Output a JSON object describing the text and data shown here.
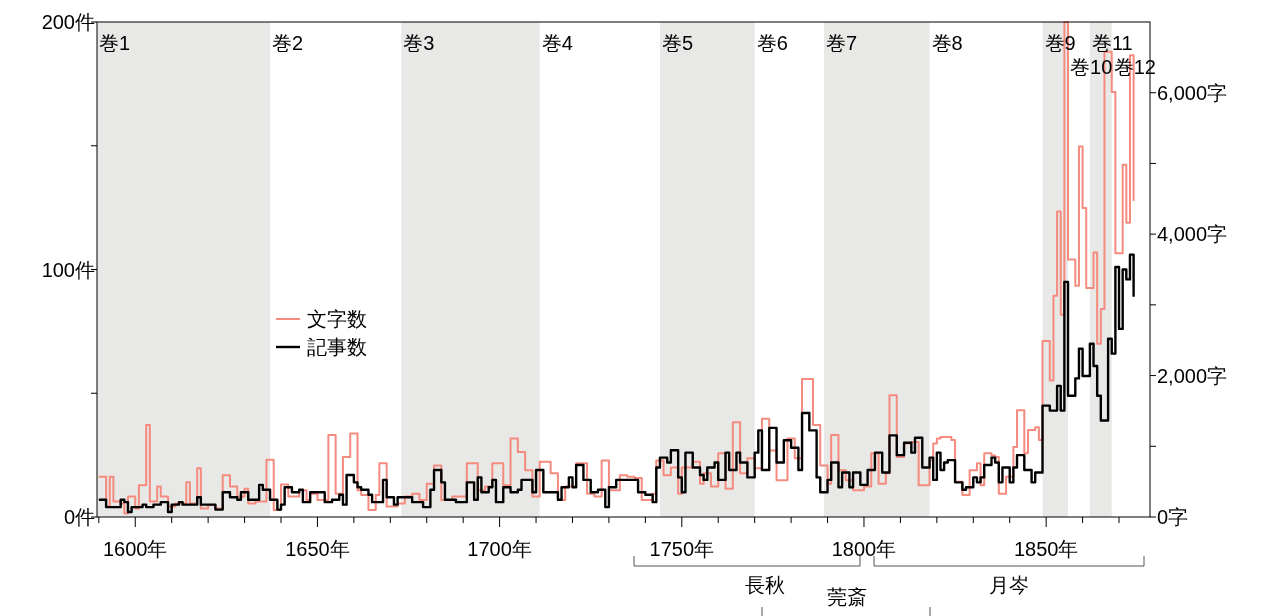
{
  "chart_data": {
    "type": "step",
    "xlim": [
      1589.5,
      1878.5
    ],
    "xticks": [
      {
        "value": 1590,
        "label": null
      },
      {
        "value": 1600,
        "label": "1600年"
      },
      {
        "value": 1610,
        "label": null
      },
      {
        "value": 1620,
        "label": null
      },
      {
        "value": 1630,
        "label": null
      },
      {
        "value": 1640,
        "label": null
      },
      {
        "value": 1650,
        "label": "1650年"
      },
      {
        "value": 1660,
        "label": null
      },
      {
        "value": 1670,
        "label": null
      },
      {
        "value": 1680,
        "label": null
      },
      {
        "value": 1690,
        "label": null
      },
      {
        "value": 1700,
        "label": "1700年"
      },
      {
        "value": 1710,
        "label": null
      },
      {
        "value": 1720,
        "label": null
      },
      {
        "value": 1730,
        "label": null
      },
      {
        "value": 1740,
        "label": null
      },
      {
        "value": 1750,
        "label": "1750年"
      },
      {
        "value": 1760,
        "label": null
      },
      {
        "value": 1770,
        "label": null
      },
      {
        "value": 1780,
        "label": null
      },
      {
        "value": 1790,
        "label": null
      },
      {
        "value": 1800,
        "label": "1800年"
      },
      {
        "value": 1810,
        "label": null
      },
      {
        "value": 1820,
        "label": null
      },
      {
        "value": 1830,
        "label": null
      },
      {
        "value": 1840,
        "label": null
      },
      {
        "value": 1850,
        "label": "1850年"
      },
      {
        "value": 1860,
        "label": null
      },
      {
        "value": 1870,
        "label": null
      }
    ],
    "ylim": [
      0,
      200
    ],
    "yticks": [
      {
        "value": 0,
        "label": "0件"
      },
      {
        "value": 50,
        "label": null
      },
      {
        "value": 100,
        "label": "100件"
      },
      {
        "value": 150,
        "label": null
      },
      {
        "value": 200,
        "label": "200件"
      }
    ],
    "y2lim": [
      0,
      7000
    ],
    "y2ticks": [
      {
        "value": 0,
        "label": "0字"
      },
      {
        "value": 1000,
        "label": null
      },
      {
        "value": 2000,
        "label": "2,000字"
      },
      {
        "value": 3000,
        "label": null
      },
      {
        "value": 4000,
        "label": "4,000字"
      },
      {
        "value": 5000,
        "label": null
      },
      {
        "value": 6000,
        "label": "6,000字"
      }
    ],
    "legend": "left",
    "series": [
      {
        "name": "文字数",
        "color": "#f58a7e",
        "axis": "y2",
        "x": [
          1590,
          1592,
          1593,
          1594,
          1596,
          1597,
          1598,
          1600,
          1601,
          1603,
          1604,
          1606,
          1607,
          1609,
          1611,
          1614,
          1615,
          1617,
          1618,
          1620,
          1622,
          1624,
          1626,
          1628,
          1630,
          1631,
          1633,
          1636,
          1638,
          1640,
          1642,
          1645,
          1647,
          1648,
          1650,
          1653,
          1655,
          1657,
          1659,
          1661,
          1662,
          1664,
          1666,
          1667,
          1669,
          1672,
          1674,
          1676,
          1678,
          1680,
          1682,
          1684,
          1687,
          1691,
          1694,
          1696,
          1698,
          1701,
          1703,
          1705,
          1707,
          1709,
          1711,
          1714,
          1716,
          1718,
          1721,
          1724,
          1726,
          1728,
          1730,
          1733,
          1735,
          1737,
          1739,
          1742,
          1743,
          1745,
          1747,
          1749,
          1750,
          1753,
          1755,
          1756,
          1758,
          1760,
          1762,
          1764,
          1766,
          1768,
          1770,
          1772,
          1774,
          1776,
          1779,
          1781,
          1783,
          1786,
          1788,
          1790,
          1791,
          1793,
          1795,
          1797,
          1800,
          1802,
          1804,
          1806,
          1807,
          1809,
          1811,
          1813,
          1815,
          1818,
          1819,
          1820,
          1821,
          1824,
          1825,
          1827,
          1829,
          1831,
          1832,
          1833,
          1835,
          1836,
          1837,
          1839,
          1841,
          1842,
          1844,
          1845,
          1847,
          1848,
          1849,
          1851,
          1852,
          1853,
          1854,
          1855,
          1856,
          1858,
          1859,
          1860,
          1861,
          1863,
          1864,
          1865,
          1866,
          1868,
          1869,
          1871,
          1872,
          1873,
          1874
        ],
        "values": [
          570,
          150,
          570,
          220,
          190,
          50,
          290,
          120,
          450,
          1300,
          220,
          430,
          290,
          150,
          190,
          490,
          190,
          690,
          120,
          170,
          120,
          590,
          430,
          290,
          400,
          190,
          220,
          810,
          100,
          460,
          290,
          380,
          240,
          330,
          240,
          1160,
          330,
          850,
          1180,
          380,
          310,
          100,
          310,
          760,
          150,
          190,
          290,
          330,
          240,
          470,
          730,
          240,
          290,
          760,
          380,
          430,
          760,
          450,
          1110,
          920,
          660,
          290,
          780,
          620,
          240,
          430,
          760,
          330,
          290,
          800,
          380,
          590,
          570,
          550,
          240,
          330,
          800,
          590,
          700,
          330,
          700,
          780,
          470,
          620,
          430,
          900,
          400,
          1340,
          620,
          830,
          690,
          1390,
          940,
          520,
          1110,
          830,
          1950,
          1300,
          730,
          470,
          1160,
          660,
          520,
          380,
          430,
          900,
          470,
          620,
          1720,
          850,
          1040,
          1060,
          450,
          800,
          1040,
          1110,
          1130,
          1090,
          500,
          310,
          660,
          760,
          450,
          900,
          870,
          850,
          330,
          570,
          990,
          1510,
          900,
          1230,
          1270,
          1090,
          2490,
          1930,
          3130,
          4320,
          2860,
          7000,
          3640,
          3270,
          5240,
          4370,
          3240,
          3740,
          2450,
          2940,
          6580,
          6010,
          3730,
          4980,
          4160,
          6530,
          4470
        ]
      },
      {
        "name": "記事数",
        "color": "#000000",
        "axis": "y",
        "x": [
          1590,
          1592,
          1596,
          1597,
          1598,
          1599,
          1601,
          1602,
          1603,
          1605,
          1607,
          1609,
          1610,
          1612,
          1613,
          1615,
          1617,
          1618,
          1621,
          1622,
          1624,
          1626,
          1628,
          1629,
          1631,
          1634,
          1635,
          1637,
          1639,
          1640,
          1641,
          1643,
          1645,
          1646,
          1648,
          1650,
          1652,
          1654,
          1656,
          1657,
          1658,
          1660,
          1661,
          1662,
          1664,
          1665,
          1667,
          1668,
          1669,
          1671,
          1672,
          1674,
          1676,
          1678,
          1679,
          1681,
          1682,
          1684,
          1685,
          1688,
          1691,
          1693,
          1694,
          1695,
          1697,
          1698,
          1699,
          1701,
          1703,
          1705,
          1706,
          1709,
          1710,
          1712,
          1714,
          1716,
          1717,
          1719,
          1720,
          1721,
          1723,
          1725,
          1727,
          1729,
          1730,
          1732,
          1734,
          1736,
          1738,
          1740,
          1742,
          1743,
          1744,
          1746,
          1747,
          1749,
          1750,
          1751,
          1753,
          1755,
          1756,
          1757,
          1759,
          1760,
          1762,
          1763,
          1765,
          1766,
          1768,
          1770,
          1771,
          1772,
          1774,
          1776,
          1778,
          1780,
          1782,
          1783,
          1785,
          1787,
          1788,
          1790,
          1791,
          1793,
          1794,
          1796,
          1797,
          1799,
          1801,
          1803,
          1805,
          1807,
          1809,
          1811,
          1813,
          1814,
          1816,
          1818,
          1819,
          1820,
          1821,
          1822,
          1823,
          1825,
          1827,
          1828,
          1830,
          1831,
          1832,
          1833,
          1835,
          1836,
          1837,
          1838,
          1840,
          1841,
          1842,
          1844,
          1846,
          1847,
          1849,
          1851,
          1853,
          1854,
          1855,
          1856,
          1858,
          1859,
          1860,
          1862,
          1863,
          1864,
          1865,
          1867,
          1868,
          1869,
          1870,
          1871,
          1872,
          1873,
          1874
        ],
        "values": [
          7,
          4,
          7,
          6,
          2,
          4,
          4,
          5,
          4,
          5,
          6,
          2,
          5,
          6,
          5,
          5,
          8,
          5,
          5,
          3,
          10,
          8,
          7,
          10,
          7,
          13,
          11,
          7,
          3,
          5,
          12,
          10,
          11,
          6,
          10,
          10,
          6,
          7,
          9,
          5,
          17,
          14,
          12,
          11,
          9,
          6,
          6,
          15,
          8,
          5,
          8,
          8,
          6,
          6,
          4,
          11,
          19,
          14,
          7,
          6,
          14,
          7,
          16,
          10,
          12,
          15,
          6,
          12,
          10,
          11,
          15,
          10,
          19,
          10,
          10,
          7,
          12,
          16,
          12,
          21,
          15,
          10,
          11,
          4,
          12,
          15,
          15,
          15,
          10,
          9,
          6,
          20,
          24,
          22,
          27,
          16,
          10,
          26,
          20,
          17,
          15,
          20,
          22,
          15,
          26,
          19,
          26,
          22,
          16,
          26,
          35,
          19,
          36,
          22,
          31,
          28,
          19,
          42,
          35,
          16,
          10,
          15,
          22,
          12,
          18,
          12,
          18,
          13,
          19,
          26,
          18,
          33,
          25,
          30,
          26,
          32,
          20,
          24,
          15,
          26,
          19,
          22,
          23,
          14,
          11,
          12,
          16,
          14,
          16,
          21,
          24,
          22,
          14,
          20,
          14,
          20,
          25,
          19,
          14,
          18,
          45,
          43,
          53,
          43,
          95,
          49,
          56,
          68,
          57,
          70,
          61,
          49,
          39,
          72,
          66,
          101,
          76,
          100,
          96,
          106,
          89
        ]
      }
    ],
    "bands": [
      {
        "axis": "x",
        "from": 1589.5,
        "to": 1637,
        "label": "巻1",
        "color": "#e8e8e6"
      },
      {
        "axis": "x",
        "from": 1673,
        "to": 1711,
        "label": "巻3",
        "color": "#e8e8e6"
      },
      {
        "axis": "x",
        "from": 1744,
        "to": 1770,
        "label": "巻5",
        "color": "#e8e8e6"
      },
      {
        "axis": "x",
        "from": 1789,
        "to": 1818,
        "label": "巻7",
        "color": "#e8e8e6"
      },
      {
        "axis": "x",
        "from": 1849,
        "to": 1856,
        "label": "巻9",
        "color": "#e8e8e6"
      },
      {
        "axis": "x",
        "from": 1862,
        "to": 1868,
        "label": "巻11",
        "color": "#e8e8e6"
      }
    ],
    "annotations": [
      {
        "text": "巻2",
        "x": 1637,
        "y": 200
      },
      {
        "text": "巻4",
        "x": 1711,
        "y": 200
      },
      {
        "text": "巻6",
        "x": 1770,
        "y": 200
      },
      {
        "text": "巻8",
        "x": 1818,
        "y": 200
      },
      {
        "text": "巻10",
        "x": 1856,
        "y": 200
      },
      {
        "text": "巻12",
        "x": 1868,
        "y": 200
      },
      "長秋",
      "莞斎",
      "月岑"
    ]
  }
}
